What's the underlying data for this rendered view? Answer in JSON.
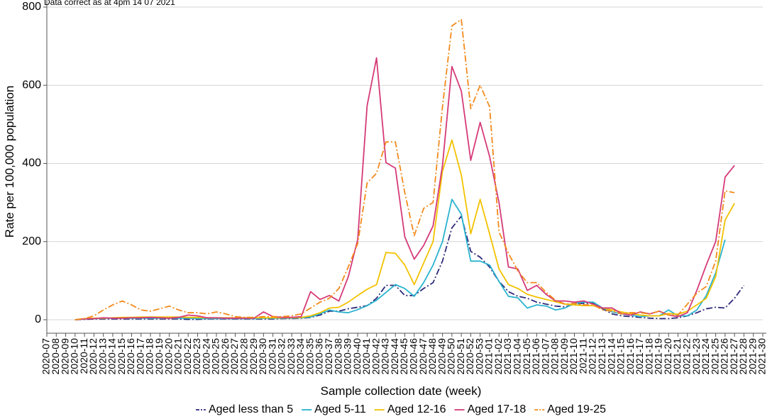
{
  "chart_data": {
    "type": "line",
    "title": "",
    "subtitle": "Data correct as at 4pm 14 07 2021",
    "xlabel": "Sample collection date (week)",
    "ylabel": "Rate per 100,000 population",
    "ylim": [
      0,
      800
    ],
    "y_ticks": [
      0,
      200,
      400,
      600,
      800
    ],
    "grid": "horizontal",
    "legend_position": "bottom",
    "categories": [
      "2020-07",
      "2020-08",
      "2020-09",
      "2020-10",
      "2020-11",
      "2020-12",
      "2020-13",
      "2020-14",
      "2020-15",
      "2020-16",
      "2020-17",
      "2020-18",
      "2020-19",
      "2020-20",
      "2020-21",
      "2020-22",
      "2020-23",
      "2020-24",
      "2020-25",
      "2020-26",
      "2020-27",
      "2020-28",
      "2020-29",
      "2020-30",
      "2020-31",
      "2020-32",
      "2020-33",
      "2020-34",
      "2020-35",
      "2020-36",
      "2020-37",
      "2020-38",
      "2020-39",
      "2020-40",
      "2020-41",
      "2020-42",
      "2020-43",
      "2020-44",
      "2020-45",
      "2020-46",
      "2020-47",
      "2020-48",
      "2020-49",
      "2020-50",
      "2020-51",
      "2020-52",
      "2020-53",
      "2021-01",
      "2021-02",
      "2021-03",
      "2021-04",
      "2021-05",
      "2021-06",
      "2021-07",
      "2021-08",
      "2021-09",
      "2021-10",
      "2021-11",
      "2021-12",
      "2021-13",
      "2021-14",
      "2021-15",
      "2021-16",
      "2021-17",
      "2021-18",
      "2021-19",
      "2021-20",
      "2021-21",
      "2021-22",
      "2021-23",
      "2021-24",
      "2021-25",
      "2021-26",
      "2021-27",
      "2021-28",
      "2021-29",
      "2021-30"
    ],
    "series": [
      {
        "name": "Aged less than 5",
        "color": "#2e2a7a",
        "dash": "dashdot",
        "values": [
          null,
          null,
          null,
          0,
          1,
          2,
          2,
          2,
          2,
          2,
          2,
          2,
          2,
          2,
          2,
          1,
          1,
          2,
          2,
          2,
          2,
          2,
          2,
          2,
          2,
          3,
          3,
          4,
          6,
          12,
          22,
          22,
          28,
          32,
          36,
          55,
          88,
          88,
          62,
          62,
          80,
          95,
          150,
          235,
          265,
          175,
          160,
          135,
          98,
          72,
          60,
          55,
          45,
          40,
          35,
          33,
          40,
          42,
          42,
          28,
          15,
          10,
          8,
          6,
          4,
          3,
          3,
          5,
          10,
          18,
          28,
          32,
          30,
          55,
          88,
          null,
          null
        ]
      },
      {
        "name": "Aged 5-11",
        "color": "#29b3cf",
        "dash": "solid",
        "values": [
          null,
          null,
          null,
          0,
          2,
          3,
          4,
          4,
          4,
          4,
          4,
          4,
          4,
          4,
          4,
          4,
          3,
          3,
          3,
          3,
          3,
          3,
          3,
          4,
          4,
          4,
          4,
          5,
          7,
          15,
          25,
          20,
          18,
          26,
          36,
          50,
          70,
          90,
          80,
          60,
          95,
          140,
          200,
          308,
          270,
          150,
          150,
          140,
          98,
          60,
          56,
          30,
          38,
          35,
          25,
          30,
          42,
          45,
          45,
          30,
          20,
          15,
          12,
          8,
          10,
          10,
          25,
          10,
          10,
          25,
          62,
          120,
          205,
          null,
          null,
          null,
          null
        ]
      },
      {
        "name": "Aged 12-16",
        "color": "#f2c200",
        "dash": "solid",
        "values": [
          null,
          null,
          null,
          0,
          3,
          4,
          4,
          5,
          6,
          6,
          7,
          7,
          7,
          7,
          7,
          6,
          6,
          5,
          5,
          5,
          5,
          5,
          5,
          5,
          5,
          5,
          5,
          6,
          10,
          18,
          30,
          32,
          45,
          62,
          78,
          90,
          172,
          170,
          140,
          90,
          145,
          200,
          380,
          460,
          370,
          220,
          308,
          220,
          130,
          90,
          80,
          65,
          58,
          52,
          46,
          40,
          38,
          36,
          36,
          30,
          25,
          20,
          16,
          12,
          10,
          10,
          16,
          14,
          22,
          38,
          55,
          110,
          255,
          298,
          null,
          null,
          null
        ]
      },
      {
        "name": "Aged 17-18",
        "color": "#d53a78",
        "dash": "solid",
        "values": [
          null,
          null,
          null,
          0,
          2,
          3,
          5,
          4,
          4,
          5,
          5,
          6,
          5,
          4,
          6,
          12,
          10,
          5,
          5,
          4,
          4,
          4,
          4,
          20,
          8,
          6,
          6,
          8,
          72,
          52,
          62,
          48,
          110,
          205,
          548,
          670,
          402,
          388,
          212,
          155,
          190,
          240,
          395,
          648,
          585,
          408,
          505,
          418,
          300,
          135,
          130,
          75,
          88,
          65,
          48,
          48,
          45,
          48,
          40,
          30,
          30,
          16,
          12,
          20,
          15,
          22,
          12,
          8,
          18,
          75,
          140,
          200,
          365,
          395,
          null,
          null,
          null
        ]
      },
      {
        "name": "Aged 19-25",
        "color": "#f28a1b",
        "dash": "dashdot",
        "values": [
          null,
          null,
          null,
          0,
          3,
          10,
          25,
          38,
          48,
          38,
          25,
          22,
          28,
          35,
          25,
          18,
          18,
          15,
          20,
          15,
          8,
          6,
          6,
          8,
          8,
          8,
          10,
          15,
          30,
          45,
          55,
          80,
          135,
          195,
          350,
          375,
          455,
          455,
          325,
          215,
          285,
          300,
          545,
          752,
          768,
          540,
          600,
          545,
          225,
          170,
          125,
          95,
          95,
          70,
          50,
          40,
          42,
          38,
          38,
          25,
          22,
          15,
          18,
          18,
          15,
          22,
          12,
          12,
          40,
          68,
          85,
          150,
          330,
          325,
          null,
          null,
          null
        ]
      }
    ]
  }
}
